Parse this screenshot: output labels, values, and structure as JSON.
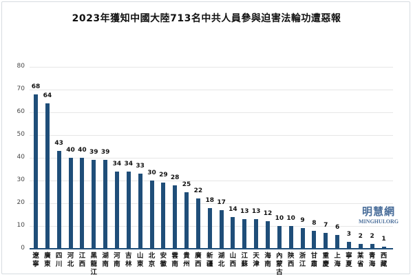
{
  "chart_data": {
    "type": "bar",
    "title": "2023年獲知中國大陸713名中共人員參與迫害法輪功遭惡報",
    "xlabel": "",
    "ylabel": "",
    "ylim": [
      0,
      80
    ],
    "yticks": [
      0,
      10,
      20,
      30,
      40,
      50,
      60,
      70,
      80
    ],
    "grid": true,
    "legend": null,
    "categories": [
      "遼寧",
      "廣東",
      "四川",
      "河北",
      "江西",
      "黑龍江",
      "湖南",
      "河南",
      "吉林",
      "山東",
      "北京",
      "安徽",
      "雲南",
      "貴州",
      "廣西",
      "新疆",
      "湖北",
      "山西",
      "江蘇",
      "天津",
      "海南",
      "內蒙古",
      "陝西",
      "浙江",
      "甘肅",
      "重慶",
      "上海",
      "寧夏",
      "某省",
      "青海",
      "西藏"
    ],
    "values": [
      68,
      64,
      43,
      40,
      40,
      39,
      39,
      34,
      34,
      33,
      30,
      29,
      28,
      25,
      22,
      18,
      17,
      14,
      13,
      13,
      12,
      10,
      10,
      9,
      8,
      7,
      6,
      3,
      2,
      2,
      1
    ],
    "bar_color": "#1f4e79"
  },
  "watermark": {
    "cn": "明慧網",
    "en": "MINGHUI.ORG"
  }
}
